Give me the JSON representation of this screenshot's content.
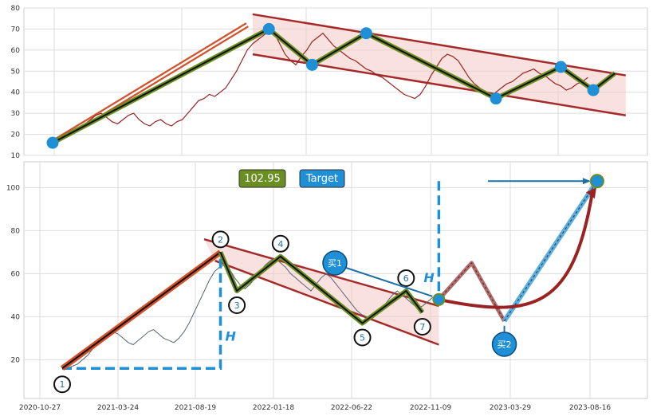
{
  "chart_data": [
    {
      "type": "line",
      "y_ticks": [
        "10",
        "20",
        "30",
        "40",
        "50",
        "60",
        "70",
        "80"
      ],
      "ylim": [
        10,
        80
      ],
      "grid": true,
      "price_series": [
        16,
        17,
        19,
        20,
        21,
        23,
        25,
        27,
        29,
        30,
        28,
        26,
        25,
        27,
        29,
        30,
        27,
        25,
        24,
        26,
        27,
        25,
        24,
        26,
        27,
        30,
        33,
        36,
        37,
        39,
        38,
        40,
        42,
        46,
        50,
        55,
        60,
        63,
        65,
        67,
        69,
        68,
        63,
        58,
        55,
        53,
        57,
        60,
        64,
        66,
        68,
        65,
        62,
        60,
        58,
        56,
        55,
        53,
        51,
        50,
        48,
        47,
        45,
        43,
        41,
        39,
        38,
        37,
        39,
        43,
        48,
        52,
        56,
        58,
        57,
        55,
        51,
        47,
        44,
        42,
        40,
        38,
        40,
        42,
        44,
        45,
        47,
        49,
        50,
        51,
        49,
        48,
        46,
        44,
        43,
        41,
        42,
        44,
        45,
        47
      ],
      "zigzag": [
        [
          0,
          16
        ],
        [
          40,
          70
        ],
        [
          48,
          53
        ],
        [
          58,
          68
        ],
        [
          82,
          37
        ],
        [
          94,
          52
        ],
        [
          100,
          41
        ],
        [
          104,
          49
        ]
      ],
      "channel_upper": [
        [
          37,
          77
        ],
        [
          106,
          48
        ]
      ],
      "channel_lower": [
        [
          37,
          58
        ],
        [
          106,
          29
        ]
      ],
      "trend_line": [
        [
          0,
          16
        ],
        [
          36,
          72
        ]
      ]
    },
    {
      "type": "line",
      "y_ticks": [
        "20",
        "40",
        "60",
        "80",
        "100"
      ],
      "x_ticks": [
        "2020-10-27",
        "2021-03-24",
        "2021-08-19",
        "2022-01-18",
        "2022-06-22",
        "2022-11-09",
        "2023-03-29",
        "2023-08-16"
      ],
      "ylim": [
        2,
        112
      ],
      "grid": true,
      "price_series": [
        16,
        16,
        17,
        18,
        20,
        22,
        25,
        27,
        29,
        31,
        33,
        32,
        30,
        28,
        27,
        29,
        31,
        33,
        34,
        32,
        30,
        29,
        28,
        30,
        33,
        37,
        42,
        47,
        52,
        57,
        61,
        63,
        64,
        62,
        58,
        55,
        53,
        55,
        58,
        61,
        64,
        66,
        67,
        65,
        63,
        60,
        58,
        56,
        54,
        52,
        55,
        58,
        60,
        58,
        55,
        52,
        49,
        46,
        43,
        41,
        40,
        39,
        41,
        44,
        47,
        50,
        52,
        50,
        48,
        46,
        44,
        45,
        47,
        49
      ],
      "pattern_points": [
        {
          "label": "1",
          "x": 0,
          "y": 16
        },
        {
          "label": "2",
          "x": 29,
          "y": 70
        },
        {
          "label": "3",
          "x": 32,
          "y": 52
        },
        {
          "label": "4",
          "x": 40,
          "y": 68
        },
        {
          "label": "5",
          "x": 55,
          "y": 37
        },
        {
          "label": "6",
          "x": 63,
          "y": 52
        },
        {
          "label": "7",
          "x": 66,
          "y": 42
        }
      ],
      "projection": [
        [
          69,
          48
        ],
        [
          75,
          65
        ],
        [
          81,
          38
        ],
        [
          98,
          103
        ]
      ],
      "target_value": "102.95",
      "target_label": "Target",
      "buy_labels": [
        "买1",
        "买2"
      ],
      "height_label": "H"
    }
  ]
}
